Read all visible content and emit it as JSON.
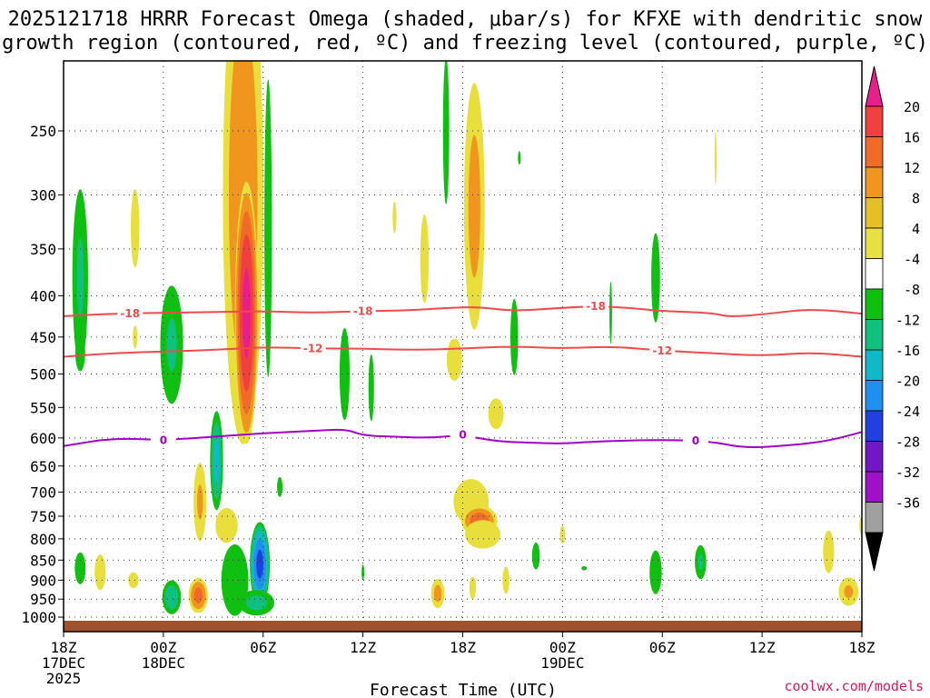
{
  "chart_data": {
    "type": "heatmap",
    "title_line1": "2025121718 HRRR Forecast Omega (shaded, μbar/s) for KFXE with dendritic snow",
    "title_line2": "growth region (contoured, red, ºC) and freezing level (contoured, purple, ºC)",
    "xlabel": "Forecast Time (UTC)",
    "credit": "coolwx.com/models",
    "x_hours_range": [
      0,
      48
    ],
    "y_pressure_range": [
      1000,
      200
    ],
    "x_ticks": [
      {
        "h": 0,
        "l1": "18Z",
        "l2": "17DEC",
        "l3": "2025"
      },
      {
        "h": 6,
        "l1": "00Z",
        "l2": "18DEC",
        "l3": ""
      },
      {
        "h": 12,
        "l1": "06Z",
        "l2": "",
        "l3": ""
      },
      {
        "h": 18,
        "l1": "12Z",
        "l2": "",
        "l3": ""
      },
      {
        "h": 24,
        "l1": "18Z",
        "l2": "",
        "l3": ""
      },
      {
        "h": 30,
        "l1": "00Z",
        "l2": "19DEC",
        "l3": ""
      },
      {
        "h": 36,
        "l1": "06Z",
        "l2": "",
        "l3": ""
      },
      {
        "h": 42,
        "l1": "12Z",
        "l2": "",
        "l3": ""
      },
      {
        "h": 48,
        "l1": "18Z",
        "l2": "",
        "l3": ""
      }
    ],
    "y_ticks": [
      250,
      300,
      350,
      400,
      450,
      500,
      550,
      600,
      650,
      700,
      750,
      800,
      850,
      900,
      950,
      1000
    ],
    "colorbar": {
      "labels": [
        "20",
        "16",
        "12",
        "8",
        "4",
        "-4",
        "-8",
        "-12",
        "-16",
        "-20",
        "-24",
        "-28",
        "-32",
        "-36"
      ],
      "colors": [
        "#e81e8c",
        "#f04040",
        "#f06a28",
        "#f0961e",
        "#e6be28",
        "#e8e040",
        "#ffffff",
        "#10c010",
        "#10c080",
        "#10b8c8",
        "#2090f0",
        "#2040e0",
        "#7018c8",
        "#a010c8",
        "#a0a0a0",
        "#000000"
      ]
    },
    "contours": [
      {
        "label": "-18",
        "color": "#f04a4a",
        "points": [
          [
            0,
            424
          ],
          [
            3,
            421
          ],
          [
            6,
            420
          ],
          [
            9,
            419
          ],
          [
            12,
            418
          ],
          [
            15,
            420
          ],
          [
            18,
            418
          ],
          [
            21,
            417
          ],
          [
            23,
            414
          ],
          [
            25,
            413
          ],
          [
            27,
            418
          ],
          [
            30,
            414
          ],
          [
            32,
            412
          ],
          [
            34,
            414
          ],
          [
            36,
            418
          ],
          [
            39,
            420
          ],
          [
            40,
            425
          ],
          [
            42,
            422
          ],
          [
            45,
            415
          ],
          [
            48,
            421
          ]
        ],
        "label_hours": [
          4,
          18,
          32
        ]
      },
      {
        "label": "-12",
        "color": "#f04a4a",
        "points": [
          [
            0,
            476
          ],
          [
            3,
            471
          ],
          [
            6,
            469
          ],
          [
            9,
            467
          ],
          [
            12,
            463
          ],
          [
            15,
            465
          ],
          [
            18,
            465
          ],
          [
            21,
            467
          ],
          [
            24,
            465
          ],
          [
            27,
            462
          ],
          [
            30,
            465
          ],
          [
            33,
            462
          ],
          [
            36,
            468
          ],
          [
            39,
            471
          ],
          [
            42,
            475
          ],
          [
            45,
            470
          ],
          [
            48,
            476
          ]
        ],
        "label_hours": [
          15,
          36
        ]
      },
      {
        "label": "0",
        "color": "#a000c8",
        "points": [
          [
            0,
            614
          ],
          [
            3,
            600
          ],
          [
            6,
            604
          ],
          [
            9,
            598
          ],
          [
            12,
            592
          ],
          [
            15,
            588
          ],
          [
            17,
            585
          ],
          [
            18,
            596
          ],
          [
            20,
            598
          ],
          [
            22,
            600
          ],
          [
            24,
            595
          ],
          [
            26,
            606
          ],
          [
            28,
            608
          ],
          [
            30,
            610
          ],
          [
            32,
            606
          ],
          [
            36,
            603
          ],
          [
            39,
            606
          ],
          [
            41,
            618
          ],
          [
            44,
            612
          ],
          [
            46,
            605
          ],
          [
            48,
            590
          ]
        ],
        "label_hours": [
          6,
          24,
          38
        ]
      }
    ],
    "blobs": [
      {
        "h": 1.0,
        "p": 380,
        "rh": 0.55,
        "rp": 130,
        "v": -9
      },
      {
        "h": 1.0,
        "p": 470,
        "rh": 0.45,
        "rp": 40,
        "v": -6
      },
      {
        "h": 1.0,
        "p": 870,
        "rh": 0.4,
        "rp": 50,
        "v": -8
      },
      {
        "h": 2.2,
        "p": 880,
        "rh": 0.5,
        "rp": 70,
        "v": 6
      },
      {
        "h": 4.3,
        "p": 330,
        "rh": 0.5,
        "rp": 80,
        "v": 5
      },
      {
        "h": 4.3,
        "p": 450,
        "rh": 0.35,
        "rp": 40,
        "v": 4.5
      },
      {
        "h": 4.2,
        "p": 900,
        "rh": 0.6,
        "rp": 40,
        "v": 5
      },
      {
        "h": 6.5,
        "p": 460,
        "rh": 0.8,
        "rp": 100,
        "v": -9
      },
      {
        "h": 6.5,
        "p": 945,
        "rh": 0.6,
        "rp": 50,
        "v": -12
      },
      {
        "h": 8.2,
        "p": 720,
        "rh": 0.45,
        "rp": 100,
        "v": 9
      },
      {
        "h": 8.1,
        "p": 940,
        "rh": 0.6,
        "rp": 50,
        "v": 14
      },
      {
        "h": 9.2,
        "p": 640,
        "rh": 0.4,
        "rp": 100,
        "v": -14
      },
      {
        "h": 9.8,
        "p": 770,
        "rh": 1.0,
        "rp": 60,
        "v": 6
      },
      {
        "h": 10.8,
        "p": 300,
        "rh": 1.3,
        "rp": 340,
        "v": 12
      },
      {
        "h": 11.0,
        "p": 420,
        "rh": 0.7,
        "rp": 190,
        "v": 22
      },
      {
        "h": 10.3,
        "p": 900,
        "rh": 1.0,
        "rp": 120,
        "v": -8
      },
      {
        "h": 11.8,
        "p": 860,
        "rh": 0.6,
        "rp": 110,
        "v": -22
      },
      {
        "h": 11.6,
        "p": 960,
        "rh": 1.2,
        "rp": 40,
        "v": -10
      },
      {
        "h": 12.3,
        "p": 330,
        "rh": 0.3,
        "rp": 250,
        "v": -7
      },
      {
        "h": 13.0,
        "p": 690,
        "rh": 0.25,
        "rp": 30,
        "v": -6
      },
      {
        "h": 16.9,
        "p": 500,
        "rh": 0.4,
        "rp": 95,
        "v": -7
      },
      {
        "h": 18.5,
        "p": 520,
        "rh": 0.25,
        "rp": 80,
        "v": -6
      },
      {
        "h": 18.0,
        "p": 880,
        "rh": 0.12,
        "rp": 30,
        "v": -6
      },
      {
        "h": 19.9,
        "p": 320,
        "rh": 0.3,
        "rp": 40,
        "v": 4.5
      },
      {
        "h": 21.7,
        "p": 360,
        "rh": 0.5,
        "rp": 100,
        "v": 5
      },
      {
        "h": 23.0,
        "p": 250,
        "rh": 0.25,
        "rp": 80,
        "v": -7
      },
      {
        "h": 24.7,
        "p": 310,
        "rh": 0.7,
        "rp": 150,
        "v": 10
      },
      {
        "h": 23.5,
        "p": 480,
        "rh": 0.9,
        "rp": 60,
        "v": 5
      },
      {
        "h": 24.5,
        "p": 720,
        "rh": 1.3,
        "rp": 60,
        "v": 8
      },
      {
        "h": 25.0,
        "p": 760,
        "rh": 1.1,
        "rp": 35,
        "v": 15
      },
      {
        "h": 25.2,
        "p": 790,
        "rh": 1.6,
        "rp": 50,
        "v": 6
      },
      {
        "h": 22.5,
        "p": 935,
        "rh": 0.45,
        "rp": 45,
        "v": 10
      },
      {
        "h": 24.6,
        "p": 920,
        "rh": 0.3,
        "rp": 45,
        "v": 6
      },
      {
        "h": 26.0,
        "p": 560,
        "rh": 0.9,
        "rp": 50,
        "v": 5
      },
      {
        "h": 27.4,
        "p": 270,
        "rh": 0.12,
        "rp": 8,
        "v": -6
      },
      {
        "h": 27.1,
        "p": 450,
        "rh": 0.35,
        "rp": 80,
        "v": -6
      },
      {
        "h": 26.6,
        "p": 900,
        "rh": 0.4,
        "rp": 70,
        "v": 5
      },
      {
        "h": 28.4,
        "p": 840,
        "rh": 0.35,
        "rp": 50,
        "v": -6
      },
      {
        "h": 30.0,
        "p": 790,
        "rh": 0.3,
        "rp": 40,
        "v": 5
      },
      {
        "h": 31.3,
        "p": 870,
        "rh": 0.25,
        "rp": 8,
        "v": -6
      },
      {
        "h": 32.9,
        "p": 420,
        "rh": 0.12,
        "rp": 60,
        "v": -6
      },
      {
        "h": 35.6,
        "p": 380,
        "rh": 0.35,
        "rp": 70,
        "v": -7
      },
      {
        "h": 35.6,
        "p": 880,
        "rh": 0.45,
        "rp": 70,
        "v": -8
      },
      {
        "h": 39.2,
        "p": 270,
        "rh": 0.15,
        "rp": 60,
        "v": 4.5
      },
      {
        "h": 38.3,
        "p": 855,
        "rh": 0.4,
        "rp": 50,
        "v": -9
      },
      {
        "h": 46.0,
        "p": 830,
        "rh": 0.5,
        "rp": 80,
        "v": 6
      },
      {
        "h": 47.2,
        "p": 930,
        "rh": 0.7,
        "rp": 45,
        "v": 9
      },
      {
        "h": 48.0,
        "p": 770,
        "rh": 0.3,
        "rp": 40,
        "v": 5
      }
    ]
  }
}
